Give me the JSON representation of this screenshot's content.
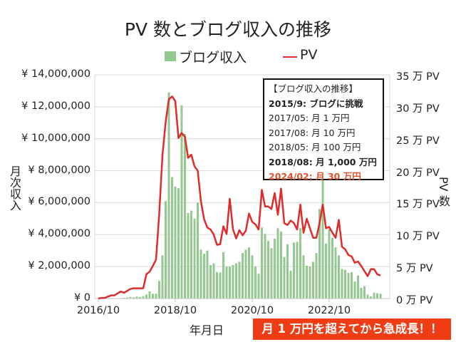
{
  "chart_data": {
    "type": "bar+line",
    "title": "PV 数とブログ収入の推移",
    "xlabel": "年月日",
    "ylabel_left": "月次収入",
    "ylabel_right": "PV 数",
    "x_start": "2016/10",
    "x_end": "2024/02",
    "x_tick_labels": [
      "2016/10",
      "2018/10",
      "2020/10",
      "2022/10"
    ],
    "y_left_ticks": [
      "¥ 0",
      "¥ 2,000,000",
      "¥ 4,000,000",
      "¥ 6,000,000",
      "¥ 8,000,000",
      "¥ 10,000,000",
      "¥ 12,000,000",
      "¥ 14,000,000"
    ],
    "y_right_ticks": [
      "0 万 PV",
      "5 万 PV",
      "10 万 PV",
      "15 万 PV",
      "20 万 PV",
      "25 万 PV",
      "30 万 PV",
      "35 万 PV"
    ],
    "ylim_left": [
      0,
      14000000
    ],
    "ylim_right": [
      0,
      35
    ],
    "grid": true,
    "legend_position": "top",
    "series": [
      {
        "name": "ブログ収入",
        "type": "bar",
        "axis": "left",
        "color": "#93c98f",
        "values": [
          0,
          0,
          0,
          0,
          0,
          0,
          0,
          10000,
          50000,
          60000,
          100000,
          80000,
          120000,
          100000,
          150000,
          250000,
          450000,
          300000,
          300000,
          1100000,
          2700000,
          6100000,
          12900000,
          7600000,
          7000000,
          6900000,
          12100000,
          10300000,
          5350000,
          5500000,
          5000000,
          6000000,
          3060000,
          2800000,
          3000000,
          2100000,
          2200000,
          1660000,
          1630000,
          2900000,
          2000000,
          2000000,
          2100000,
          2200000,
          2300000,
          2850000,
          3050000,
          3200000,
          2700000,
          2000000,
          1550000,
          4450000,
          4050000,
          3600000,
          3150000,
          3750000,
          4400000,
          4200000,
          2600000,
          3400000,
          1750000,
          3500000,
          3550000,
          4400000,
          2700000,
          2050000,
          2000000,
          2300000,
          2850000,
          5600000,
          8000000,
          3450000,
          4350000,
          3800000,
          3200000,
          2700000,
          1850000,
          1800000,
          1600000,
          1650000,
          1070000,
          1450000,
          670000,
          770000,
          250000,
          130000,
          370000,
          330000,
          300000
        ]
      },
      {
        "name": "PV",
        "type": "line",
        "axis": "right",
        "color": "#e02b2b",
        "values": [
          0,
          0.1,
          0.1,
          0.3,
          0.5,
          0.5,
          0.8,
          1.1,
          0.9,
          1.2,
          1.5,
          1.6,
          1.6,
          1.6,
          1.6,
          3.8,
          4.2,
          5.1,
          6.1,
          13.3,
          22.4,
          27.6,
          31.2,
          31.6,
          30.9,
          25.1,
          25.9,
          25.3,
          22,
          22.5,
          20.7,
          20,
          15.2,
          12.4,
          11.1,
          10.8,
          10,
          8.4,
          8.5,
          11.3,
          10.1,
          15.6,
          10.8,
          9.4,
          10.7,
          9.9,
          10.6,
          13.3,
          12,
          11.6,
          10.8,
          17,
          14.4,
          14.4,
          14,
          16.5,
          13.1,
          17.2,
          11.8,
          11.5,
          12.2,
          11.8,
          10.8,
          14.7,
          10.3,
          12.5,
          11,
          9.5,
          9.5,
          11.8,
          14.7,
          11,
          11.2,
          10.3,
          9.5,
          12.3,
          8.1,
          7.7,
          6.8,
          6.6,
          5.6,
          5.8,
          5.1,
          4.3,
          3.5,
          4.6,
          4.6,
          3.8,
          3.6
        ]
      }
    ],
    "annotation_box": {
      "heading": "【ブログ収入の推移】",
      "lines": [
        {
          "text": "2015/9: ブログに挑戦",
          "bold": true
        },
        {
          "text": "2017/05: 月 1 万円",
          "bold": false
        },
        {
          "text": "2017/08: 月 10 万円",
          "bold": false
        },
        {
          "text": "2018/05: 月 100 万円",
          "bold": false
        },
        {
          "text": "2018/08: 月 1,000 万円",
          "bold": true
        },
        {
          "text": "2024/02: 月 30 万円",
          "bold": true,
          "color": "#e0502a"
        }
      ]
    },
    "banner": {
      "text": "月 1 万円を超えてから急成長！！",
      "color": "#f03c14"
    }
  }
}
